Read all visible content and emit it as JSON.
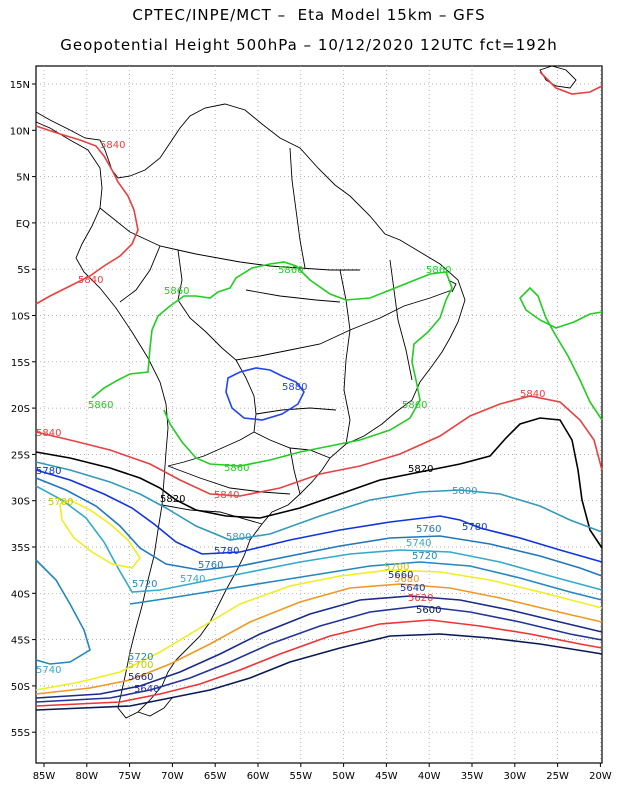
{
  "header": {
    "line1": "CPTEC/INPE/MCT –  Eta Model 15km – GFS",
    "line2": "Geopotential Height 500hPa – 10/12/2020 12UTC fct=192h"
  },
  "axes": {
    "lat_labels": [
      "15N",
      "10N",
      "5N",
      "EQ",
      "5S",
      "10S",
      "15S",
      "20S",
      "25S",
      "30S",
      "35S",
      "40S",
      "45S",
      "50S",
      "55S"
    ],
    "lon_labels": [
      "85W",
      "80W",
      "75W",
      "70W",
      "65W",
      "60W",
      "55W",
      "50W",
      "45W",
      "40W",
      "35W",
      "30W",
      "25W",
      "20W"
    ]
  },
  "contours": [
    {
      "value": "5840",
      "color": "#e84040"
    },
    {
      "value": "5860",
      "color": "#22cc22"
    },
    {
      "value": "5880",
      "color": "#2244ee"
    },
    {
      "value": "5820",
      "color": "#000000"
    },
    {
      "value": "5800",
      "color": "#3399bb"
    },
    {
      "value": "5780",
      "color": "#1133dd"
    },
    {
      "value": "5760",
      "color": "#2277bb"
    },
    {
      "value": "5740",
      "color": "#33aacc"
    },
    {
      "value": "5720",
      "color": "#2288bb"
    },
    {
      "value": "5700",
      "color": "#eeee22"
    },
    {
      "value": "5680",
      "color": "#ee9922"
    },
    {
      "value": "5660",
      "color": "#1a2a88"
    },
    {
      "value": "5640",
      "color": "#223399"
    },
    {
      "value": "5620",
      "color": "#ee3333"
    },
    {
      "value": "5600",
      "color": "#0a1a55"
    }
  ],
  "labels": [
    {
      "text": "5840",
      "color": "#e84040"
    },
    {
      "text": "5840",
      "color": "#e84040"
    },
    {
      "text": "5840",
      "color": "#e84040"
    },
    {
      "text": "5840",
      "color": "#e84040"
    },
    {
      "text": "5840",
      "color": "#e84040"
    },
    {
      "text": "5860",
      "color": "#22cc22"
    },
    {
      "text": "5860",
      "color": "#22cc22"
    },
    {
      "text": "5860",
      "color": "#22cc22"
    },
    {
      "text": "5860",
      "color": "#22cc22"
    },
    {
      "text": "5860",
      "color": "#22cc22"
    },
    {
      "text": "5860",
      "color": "#22cc22"
    },
    {
      "text": "5880",
      "color": "#2244ee"
    },
    {
      "text": "5820",
      "color": "#000000"
    },
    {
      "text": "5820",
      "color": "#000000"
    },
    {
      "text": "5800",
      "color": "#3399bb"
    },
    {
      "text": "5800",
      "color": "#3399bb"
    },
    {
      "text": "5780",
      "color": "#1133dd"
    },
    {
      "text": "5780",
      "color": "#1133dd"
    },
    {
      "text": "5760",
      "color": "#2277bb"
    },
    {
      "text": "5760",
      "color": "#2277bb"
    },
    {
      "text": "5740",
      "color": "#33aacc"
    },
    {
      "text": "5740",
      "color": "#33aacc"
    },
    {
      "text": "5720",
      "color": "#2288bb"
    },
    {
      "text": "5720",
      "color": "#2288bb"
    },
    {
      "text": "5700",
      "color": "#c8c800"
    },
    {
      "text": "5700",
      "color": "#c8c800"
    },
    {
      "text": "5680",
      "color": "#ee9922"
    },
    {
      "text": "5660",
      "color": "#1a2a88"
    },
    {
      "text": "5640",
      "color": "#223399"
    },
    {
      "text": "5620",
      "color": "#ee3333"
    },
    {
      "text": "5600",
      "color": "#0a1a55"
    },
    {
      "text": "5780",
      "color": "#1133dd"
    },
    {
      "text": "5740",
      "color": "#33aacc"
    },
    {
      "text": "5720",
      "color": "#2288bb"
    },
    {
      "text": "5700",
      "color": "#c8c800"
    },
    {
      "text": "5660",
      "color": "#1a2a88"
    },
    {
      "text": "5640",
      "color": "#223399"
    }
  ]
}
